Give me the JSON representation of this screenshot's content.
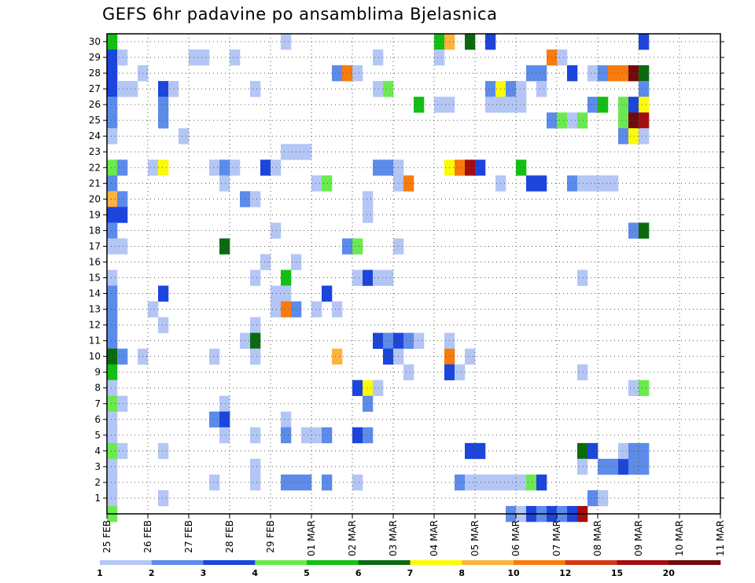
{
  "chart_data": {
    "type": "heatmap",
    "title": "GEFS 6hr padavine po ansamblima Bjelasnica",
    "xlabel": "",
    "ylabel": "",
    "x_tick_labels": [
      "25 FEB",
      "26 FEB",
      "27 FEB",
      "28 FEB",
      "29 FEB",
      "01 MAR",
      "02 MAR",
      "03 MAR",
      "04 MAR",
      "05 MAR",
      "06 MAR",
      "07 MAR",
      "08 MAR",
      "09 MAR",
      "10 MAR",
      "11 MAR"
    ],
    "y_tick_labels": [
      "1",
      "2",
      "3",
      "4",
      "5",
      "6",
      "7",
      "8",
      "9",
      "10",
      "11",
      "12",
      "13",
      "14",
      "15",
      "16",
      "17",
      "18",
      "19",
      "20",
      "21",
      "22",
      "23",
      "24",
      "25",
      "26",
      "27",
      "28",
      "29",
      "30"
    ],
    "y_range": [
      0,
      30
    ],
    "x_range_days": [
      0,
      15
    ],
    "steps_per_day": 4,
    "grid": "dotted",
    "colorbar": {
      "labels": [
        "1",
        "2",
        "3",
        "4",
        "5",
        "6",
        "7",
        "8",
        "10",
        "12",
        "15",
        "20"
      ],
      "colors": [
        "#b4c6f5",
        "#5c8bea",
        "#1c45dd",
        "#6aea4f",
        "#13bf14",
        "#0b6a0e",
        "#fbfb08",
        "#fdb33e",
        "#f87b0d",
        "#d43814",
        "#a40d0e",
        "#730909"
      ]
    },
    "cells": [
      [
        0,
        30,
        4
      ],
      [
        0,
        29,
        2
      ],
      [
        0,
        28,
        2
      ],
      [
        0,
        27,
        2
      ],
      [
        0,
        26,
        1
      ],
      [
        0,
        25,
        1
      ],
      [
        0,
        24,
        0
      ],
      [
        0,
        22,
        3
      ],
      [
        0,
        21,
        1
      ],
      [
        0,
        20,
        7
      ],
      [
        0,
        19,
        2
      ],
      [
        0,
        18,
        1
      ],
      [
        0,
        17,
        0
      ],
      [
        0,
        15,
        0
      ],
      [
        0,
        14,
        1
      ],
      [
        0,
        13,
        1
      ],
      [
        0,
        12,
        1
      ],
      [
        0,
        11,
        1
      ],
      [
        0,
        10,
        5
      ],
      [
        0,
        9,
        4
      ],
      [
        0,
        8,
        0
      ],
      [
        0,
        7,
        3
      ],
      [
        0,
        6,
        0
      ],
      [
        0,
        5,
        0
      ],
      [
        0,
        4,
        3
      ],
      [
        0,
        3,
        0
      ],
      [
        0,
        2,
        0
      ],
      [
        0,
        1,
        0
      ],
      [
        0,
        0,
        3
      ],
      [
        1,
        29,
        0
      ],
      [
        1,
        27,
        0
      ],
      [
        1,
        22,
        1
      ],
      [
        1,
        20,
        1
      ],
      [
        1,
        19,
        2
      ],
      [
        1,
        17,
        0
      ],
      [
        1,
        10,
        1
      ],
      [
        1,
        7,
        0
      ],
      [
        1,
        4,
        0
      ],
      [
        2,
        27,
        0
      ],
      [
        3,
        28,
        0
      ],
      [
        3,
        10,
        0
      ],
      [
        4,
        22,
        0
      ],
      [
        4,
        13,
        0
      ],
      [
        5,
        27,
        2
      ],
      [
        5,
        26,
        1
      ],
      [
        5,
        25,
        1
      ],
      [
        5,
        22,
        6
      ],
      [
        5,
        14,
        2
      ],
      [
        5,
        12,
        0
      ],
      [
        5,
        4,
        0
      ],
      [
        5,
        1,
        0
      ],
      [
        6,
        27,
        0
      ],
      [
        7,
        24,
        0
      ],
      [
        8,
        29,
        0
      ],
      [
        9,
        29,
        0
      ],
      [
        10,
        22,
        0
      ],
      [
        10,
        10,
        0
      ],
      [
        10,
        6,
        1
      ],
      [
        10,
        2,
        0
      ],
      [
        11,
        22,
        1
      ],
      [
        11,
        21,
        0
      ],
      [
        11,
        17,
        5
      ],
      [
        11,
        7,
        0
      ],
      [
        11,
        6,
        2
      ],
      [
        11,
        5,
        0
      ],
      [
        12,
        22,
        0
      ],
      [
        12,
        29,
        0
      ],
      [
        13,
        20,
        1
      ],
      [
        13,
        11,
        0
      ],
      [
        14,
        27,
        0
      ],
      [
        14,
        20,
        0
      ],
      [
        14,
        15,
        0
      ],
      [
        14,
        12,
        0
      ],
      [
        14,
        11,
        5
      ],
      [
        14,
        10,
        0
      ],
      [
        14,
        5,
        0
      ],
      [
        14,
        3,
        0
      ],
      [
        14,
        2,
        0
      ],
      [
        15,
        22,
        2
      ],
      [
        15,
        16,
        0
      ],
      [
        16,
        22,
        0
      ],
      [
        16,
        18,
        0
      ],
      [
        16,
        14,
        0
      ],
      [
        16,
        13,
        0
      ],
      [
        17,
        30,
        0
      ],
      [
        17,
        23,
        0
      ],
      [
        17,
        15,
        4
      ],
      [
        17,
        14,
        0
      ],
      [
        17,
        13,
        8
      ],
      [
        17,
        6,
        0
      ],
      [
        17,
        5,
        1
      ],
      [
        17,
        2,
        1
      ],
      [
        18,
        23,
        0
      ],
      [
        18,
        16,
        0
      ],
      [
        18,
        13,
        1
      ],
      [
        18,
        2,
        1
      ],
      [
        19,
        23,
        0
      ],
      [
        19,
        5,
        0
      ],
      [
        19,
        2,
        1
      ],
      [
        20,
        21,
        0
      ],
      [
        20,
        13,
        0
      ],
      [
        20,
        5,
        0
      ],
      [
        21,
        21,
        3
      ],
      [
        21,
        14,
        2
      ],
      [
        21,
        5,
        1
      ],
      [
        21,
        2,
        1
      ],
      [
        22,
        28,
        1
      ],
      [
        22,
        10,
        7
      ],
      [
        22,
        13,
        0
      ],
      [
        23,
        28,
        8
      ],
      [
        23,
        17,
        1
      ],
      [
        24,
        28,
        0
      ],
      [
        24,
        17,
        3
      ],
      [
        24,
        15,
        0
      ],
      [
        24,
        8,
        2
      ],
      [
        24,
        5,
        2
      ],
      [
        24,
        2,
        0
      ],
      [
        25,
        20,
        0
      ],
      [
        25,
        19,
        0
      ],
      [
        25,
        15,
        2
      ],
      [
        25,
        8,
        6
      ],
      [
        25,
        7,
        1
      ],
      [
        25,
        5,
        1
      ],
      [
        26,
        29,
        0
      ],
      [
        26,
        27,
        0
      ],
      [
        26,
        22,
        1
      ],
      [
        26,
        15,
        0
      ],
      [
        26,
        11,
        2
      ],
      [
        26,
        8,
        0
      ],
      [
        27,
        27,
        3
      ],
      [
        27,
        22,
        1
      ],
      [
        27,
        15,
        0
      ],
      [
        27,
        11,
        1
      ],
      [
        27,
        10,
        2
      ],
      [
        28,
        22,
        0
      ],
      [
        28,
        21,
        0
      ],
      [
        28,
        17,
        0
      ],
      [
        28,
        11,
        2
      ],
      [
        28,
        10,
        0
      ],
      [
        29,
        21,
        8
      ],
      [
        29,
        9,
        0
      ],
      [
        29,
        11,
        1
      ],
      [
        30,
        26,
        4
      ],
      [
        30,
        11,
        0
      ],
      [
        32,
        30,
        4
      ],
      [
        32,
        29,
        0
      ],
      [
        32,
        26,
        0
      ],
      [
        33,
        30,
        7
      ],
      [
        33,
        26,
        0
      ],
      [
        33,
        22,
        6
      ],
      [
        33,
        11,
        0
      ],
      [
        33,
        10,
        8
      ],
      [
        33,
        9,
        2
      ],
      [
        34,
        22,
        8
      ],
      [
        34,
        9,
        0
      ],
      [
        34,
        2,
        1
      ],
      [
        35,
        30,
        5
      ],
      [
        35,
        22,
        10
      ],
      [
        35,
        10,
        0
      ],
      [
        35,
        4,
        2
      ],
      [
        35,
        2,
        0
      ],
      [
        36,
        22,
        2
      ],
      [
        36,
        4,
        2
      ],
      [
        36,
        2,
        0
      ],
      [
        37,
        30,
        2
      ],
      [
        37,
        27,
        1
      ],
      [
        37,
        26,
        0
      ],
      [
        37,
        2,
        0
      ],
      [
        38,
        27,
        6
      ],
      [
        38,
        26,
        0
      ],
      [
        38,
        21,
        0
      ],
      [
        38,
        2,
        0
      ],
      [
        39,
        27,
        1
      ],
      [
        39,
        26,
        0
      ],
      [
        39,
        2,
        0
      ],
      [
        39,
        0,
        1
      ],
      [
        40,
        27,
        0
      ],
      [
        40,
        26,
        0
      ],
      [
        40,
        22,
        4
      ],
      [
        40,
        2,
        0
      ],
      [
        40,
        0,
        0
      ],
      [
        41,
        28,
        1
      ],
      [
        41,
        21,
        2
      ],
      [
        41,
        2,
        3
      ],
      [
        41,
        0,
        2
      ],
      [
        42,
        28,
        1
      ],
      [
        42,
        27,
        0
      ],
      [
        42,
        21,
        2
      ],
      [
        42,
        2,
        2
      ],
      [
        42,
        0,
        1
      ],
      [
        43,
        29,
        8
      ],
      [
        43,
        25,
        1
      ],
      [
        43,
        0,
        2
      ],
      [
        44,
        29,
        0
      ],
      [
        44,
        25,
        3
      ],
      [
        44,
        0,
        1
      ],
      [
        45,
        28,
        2
      ],
      [
        45,
        25,
        0
      ],
      [
        45,
        21,
        1
      ],
      [
        45,
        0,
        2
      ],
      [
        46,
        25,
        3
      ],
      [
        46,
        21,
        0
      ],
      [
        46,
        15,
        0
      ],
      [
        46,
        9,
        0
      ],
      [
        46,
        4,
        5
      ],
      [
        46,
        3,
        0
      ],
      [
        46,
        0,
        10
      ],
      [
        47,
        28,
        0
      ],
      [
        47,
        26,
        1
      ],
      [
        47,
        21,
        0
      ],
      [
        47,
        4,
        2
      ],
      [
        47,
        1,
        1
      ],
      [
        48,
        28,
        1
      ],
      [
        48,
        26,
        4
      ],
      [
        48,
        21,
        0
      ],
      [
        48,
        3,
        1
      ],
      [
        48,
        1,
        0
      ],
      [
        49,
        28,
        8
      ],
      [
        49,
        21,
        0
      ],
      [
        49,
        3,
        1
      ],
      [
        50,
        28,
        8
      ],
      [
        50,
        26,
        3
      ],
      [
        50,
        25,
        3
      ],
      [
        50,
        24,
        1
      ],
      [
        50,
        3,
        2
      ],
      [
        50,
        4,
        0
      ],
      [
        51,
        28,
        11
      ],
      [
        51,
        26,
        2
      ],
      [
        51,
        25,
        11
      ],
      [
        51,
        24,
        6
      ],
      [
        51,
        18,
        1
      ],
      [
        51,
        8,
        0
      ],
      [
        51,
        4,
        1
      ],
      [
        51,
        3,
        1
      ],
      [
        52,
        30,
        2
      ],
      [
        52,
        28,
        5
      ],
      [
        52,
        27,
        1
      ],
      [
        52,
        26,
        6
      ],
      [
        52,
        25,
        10
      ],
      [
        52,
        24,
        0
      ],
      [
        52,
        18,
        5
      ],
      [
        52,
        8,
        3
      ],
      [
        52,
        4,
        1
      ],
      [
        52,
        3,
        1
      ]
    ]
  }
}
